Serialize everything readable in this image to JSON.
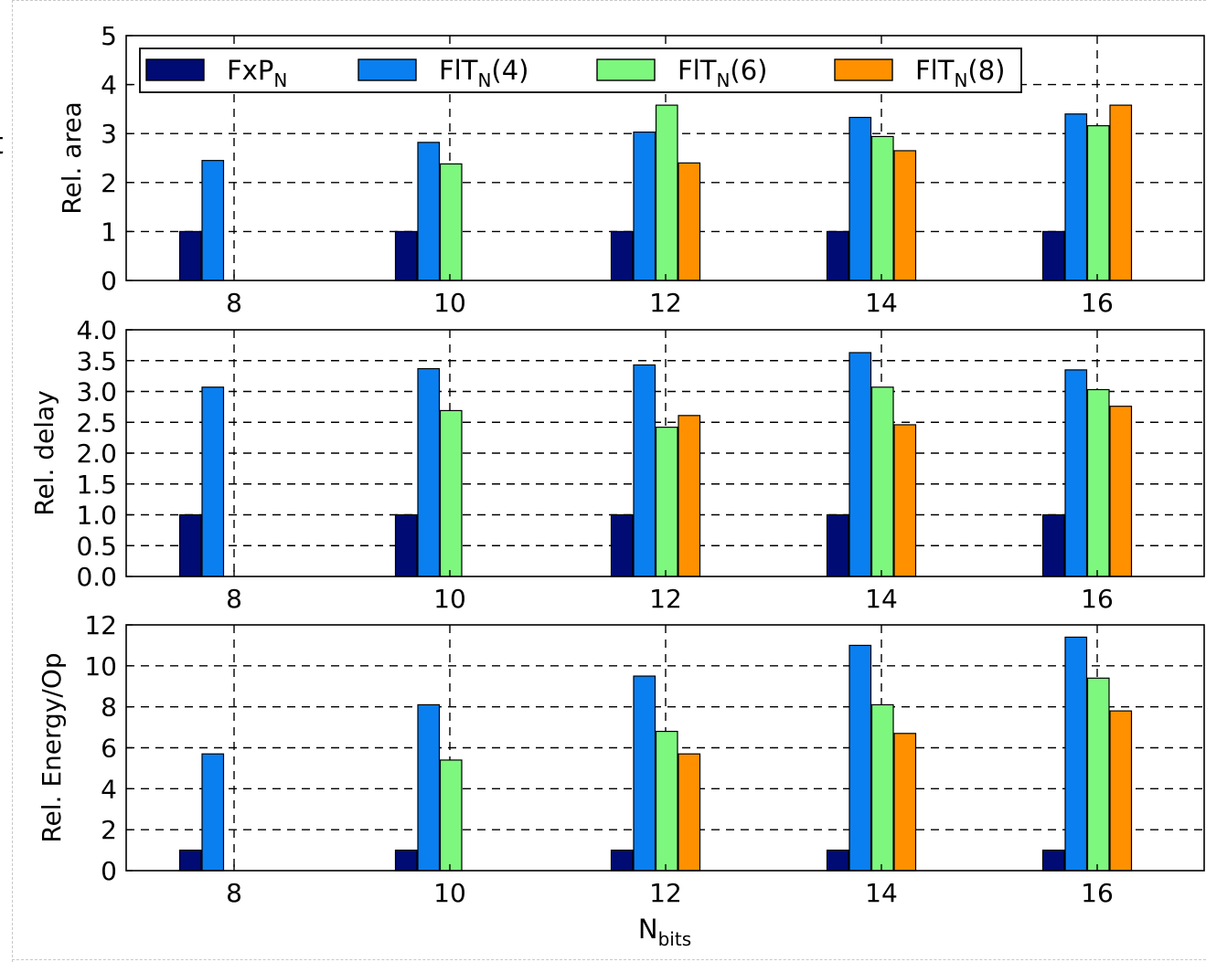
{
  "fragment_text": "t",
  "legend": [
    {
      "base": "FxP",
      "sub": "N",
      "suffix": "",
      "color": "#000b73"
    },
    {
      "base": "FlT",
      "sub": "N",
      "suffix": "(4)",
      "color": "#0a7ff0"
    },
    {
      "base": "FlT",
      "sub": "N",
      "suffix": "(6)",
      "color": "#7ef77e"
    },
    {
      "base": "FlT",
      "sub": "N",
      "suffix": "(8)",
      "color": "#ff9000"
    }
  ],
  "xlabel": {
    "base": "N",
    "sub": "bits"
  },
  "chart_data": [
    {
      "type": "bar",
      "ylabel": "Rel. area",
      "categories": [
        "8",
        "10",
        "12",
        "14",
        "16"
      ],
      "ylim": [
        0,
        5
      ],
      "yticks": [
        "0",
        "1",
        "2",
        "3",
        "4",
        "5"
      ],
      "grid": true,
      "legend_position": "top",
      "series": [
        {
          "name": "FxP_N",
          "values": [
            1,
            1,
            1,
            1,
            1
          ]
        },
        {
          "name": "FlT_N(4)",
          "values": [
            2.45,
            2.82,
            3.03,
            3.33,
            3.4
          ]
        },
        {
          "name": "FlT_N(6)",
          "values": [
            null,
            2.38,
            3.58,
            2.94,
            3.16
          ]
        },
        {
          "name": "FlT_N(8)",
          "values": [
            null,
            null,
            2.4,
            2.65,
            3.58
          ]
        }
      ]
    },
    {
      "type": "bar",
      "ylabel": "Rel. delay",
      "categories": [
        "8",
        "10",
        "12",
        "14",
        "16"
      ],
      "ylim": [
        0,
        4
      ],
      "yticks": [
        "0.0",
        "0.5",
        "1.0",
        "1.5",
        "2.0",
        "2.5",
        "3.0",
        "3.5",
        "4.0"
      ],
      "grid": true,
      "series": [
        {
          "name": "FxP_N",
          "values": [
            1,
            1,
            1,
            1,
            1
          ]
        },
        {
          "name": "FlT_N(4)",
          "values": [
            3.07,
            3.37,
            3.43,
            3.63,
            3.35
          ]
        },
        {
          "name": "FlT_N(6)",
          "values": [
            null,
            2.69,
            2.42,
            3.07,
            3.03
          ]
        },
        {
          "name": "FlT_N(8)",
          "values": [
            null,
            null,
            2.61,
            2.46,
            2.76
          ]
        }
      ]
    },
    {
      "type": "bar",
      "ylabel": "Rel. Energy/Op",
      "categories": [
        "8",
        "10",
        "12",
        "14",
        "16"
      ],
      "ylim": [
        0,
        12
      ],
      "yticks": [
        "0",
        "2",
        "4",
        "6",
        "8",
        "10",
        "12"
      ],
      "grid": true,
      "series": [
        {
          "name": "FxP_N",
          "values": [
            1,
            1,
            1,
            1,
            1
          ]
        },
        {
          "name": "FlT_N(4)",
          "values": [
            5.7,
            8.1,
            9.5,
            11.0,
            11.4
          ]
        },
        {
          "name": "FlT_N(6)",
          "values": [
            null,
            5.4,
            6.8,
            8.1,
            9.4
          ]
        },
        {
          "name": "FlT_N(8)",
          "values": [
            null,
            null,
            5.7,
            6.7,
            7.8
          ]
        }
      ]
    }
  ]
}
